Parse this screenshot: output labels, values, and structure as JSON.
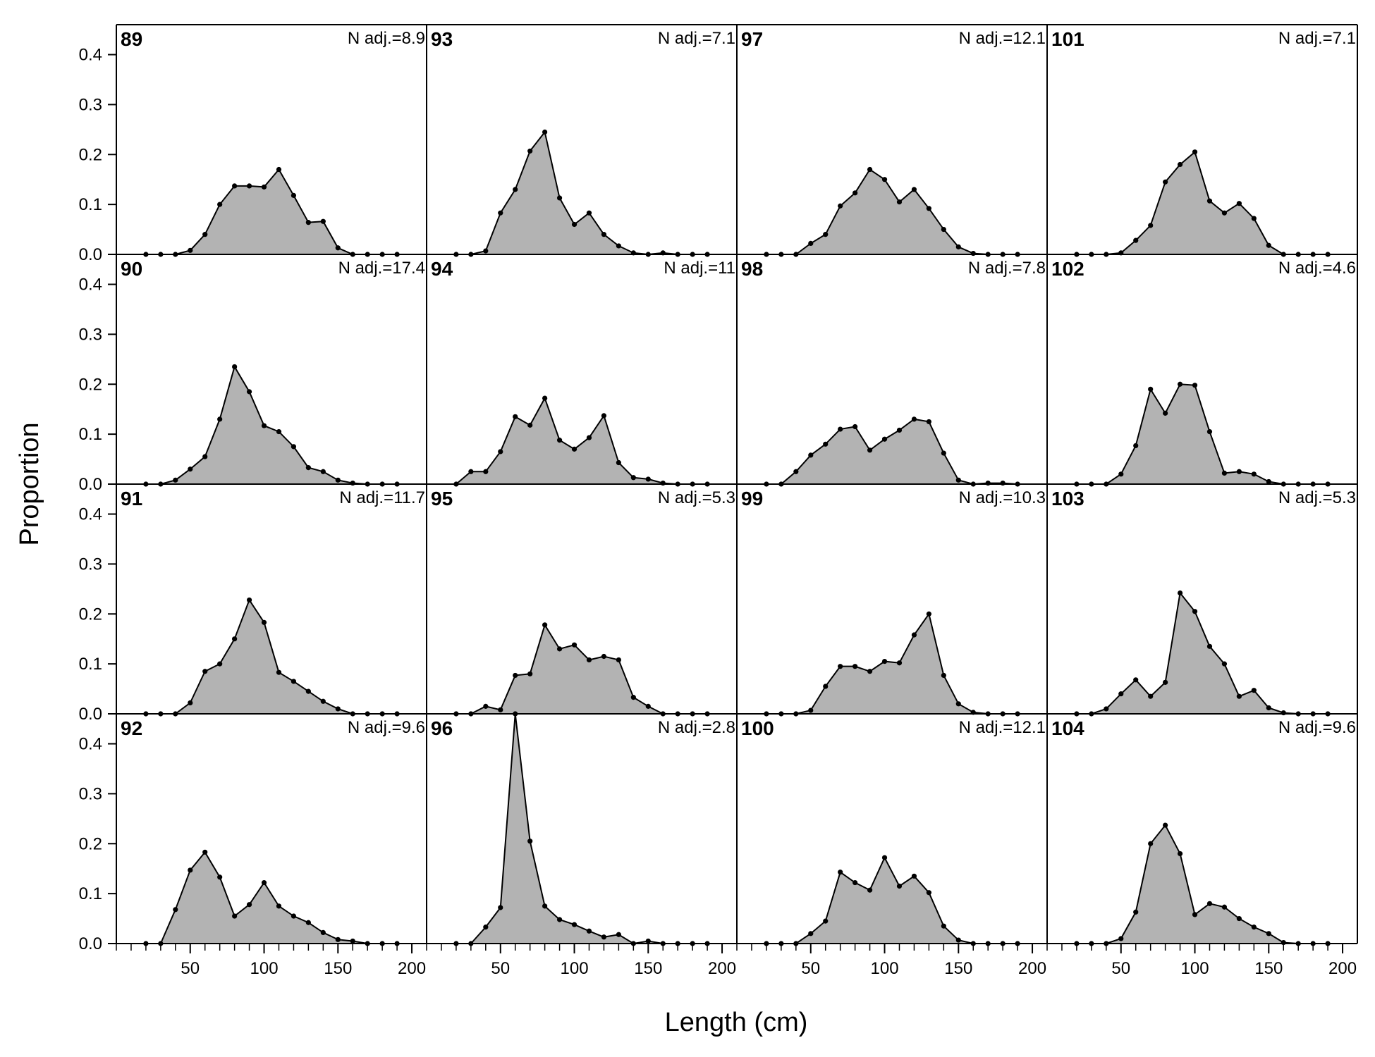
{
  "chart_data": {
    "type": "area",
    "xlabel": "Length (cm)",
    "ylabel": "Proportion",
    "xlim": [
      0,
      210
    ],
    "ylim": [
      0,
      0.46
    ],
    "x_ticks": [
      50,
      100,
      150,
      200
    ],
    "y_ticks": [
      "0.0",
      "0.1",
      "0.2",
      "0.3",
      "0.4"
    ],
    "grid": false,
    "layout": {
      "rows": 4,
      "cols": 4,
      "order": "column-major"
    },
    "x": [
      20,
      30,
      40,
      50,
      60,
      70,
      80,
      90,
      100,
      110,
      120,
      130,
      140,
      150,
      160,
      170,
      180,
      190
    ],
    "panels": [
      {
        "id": "89",
        "n_label": "N adj.=8.9",
        "values": [
          0,
          0,
          0,
          0.008,
          0.04,
          0.1,
          0.137,
          0.137,
          0.135,
          0.17,
          0.118,
          0.064,
          0.066,
          0.013,
          0,
          0,
          0,
          0
        ]
      },
      {
        "id": "90",
        "n_label": "N adj.=17.4",
        "values": [
          0,
          0,
          0.008,
          0.03,
          0.055,
          0.13,
          0.235,
          0.185,
          0.117,
          0.105,
          0.075,
          0.033,
          0.025,
          0.008,
          0.002,
          0,
          0,
          0
        ]
      },
      {
        "id": "91",
        "n_label": "N adj.=11.7",
        "values": [
          0,
          0,
          0,
          0.022,
          0.085,
          0.1,
          0.15,
          0.228,
          0.183,
          0.083,
          0.065,
          0.045,
          0.025,
          0.01,
          0,
          0,
          0,
          0
        ]
      },
      {
        "id": "92",
        "n_label": "N adj.=9.6",
        "values": [
          0,
          0,
          0.068,
          0.147,
          0.183,
          0.133,
          0.055,
          0.078,
          0.122,
          0.075,
          0.055,
          0.042,
          0.022,
          0.008,
          0.005,
          0,
          0,
          0
        ]
      },
      {
        "id": "93",
        "n_label": "N adj.=7.1",
        "values": [
          0,
          0,
          0.007,
          0.083,
          0.13,
          0.207,
          0.245,
          0.113,
          0.06,
          0.083,
          0.04,
          0.017,
          0.003,
          0,
          0.003,
          0,
          0,
          0
        ]
      },
      {
        "id": "94",
        "n_label": "N adj.=11",
        "values": [
          0,
          0.025,
          0.025,
          0.065,
          0.135,
          0.118,
          0.172,
          0.088,
          0.07,
          0.093,
          0.137,
          0.043,
          0.013,
          0.01,
          0.002,
          0,
          0,
          0
        ]
      },
      {
        "id": "95",
        "n_label": "N adj.=5.3",
        "values": [
          0,
          0,
          0.015,
          0.008,
          0.077,
          0.08,
          0.178,
          0.13,
          0.138,
          0.108,
          0.115,
          0.108,
          0.033,
          0.015,
          0,
          0,
          0,
          0
        ]
      },
      {
        "id": "96",
        "n_label": "N adj.=2.8",
        "values": [
          0,
          0,
          0.033,
          0.072,
          0.46,
          0.205,
          0.075,
          0.048,
          0.038,
          0.025,
          0.013,
          0.018,
          0,
          0.005,
          0,
          0,
          0,
          0
        ]
      },
      {
        "id": "97",
        "n_label": "N adj.=12.1",
        "values": [
          0,
          0,
          0,
          0.022,
          0.04,
          0.097,
          0.123,
          0.17,
          0.15,
          0.105,
          0.13,
          0.092,
          0.05,
          0.015,
          0.002,
          0,
          0,
          0
        ]
      },
      {
        "id": "98",
        "n_label": "N adj.=7.8",
        "values": [
          0,
          0,
          0.025,
          0.058,
          0.08,
          0.11,
          0.115,
          0.068,
          0.09,
          0.108,
          0.13,
          0.125,
          0.062,
          0.008,
          0,
          0.002,
          0.002,
          0
        ]
      },
      {
        "id": "99",
        "n_label": "N adj.=10.3",
        "values": [
          0,
          0,
          0,
          0.007,
          0.055,
          0.095,
          0.095,
          0.085,
          0.105,
          0.102,
          0.158,
          0.2,
          0.077,
          0.02,
          0.003,
          0,
          0,
          0
        ]
      },
      {
        "id": "100",
        "n_label": "N adj.=12.1",
        "values": [
          0,
          0,
          0,
          0.02,
          0.045,
          0.143,
          0.122,
          0.107,
          0.172,
          0.115,
          0.135,
          0.102,
          0.035,
          0.007,
          0,
          0,
          0,
          0
        ]
      },
      {
        "id": "101",
        "n_label": "N adj.=7.1",
        "values": [
          0,
          0,
          0,
          0.003,
          0.028,
          0.058,
          0.145,
          0.18,
          0.205,
          0.107,
          0.083,
          0.102,
          0.072,
          0.018,
          0,
          0,
          0,
          0
        ]
      },
      {
        "id": "102",
        "n_label": "N adj.=4.6",
        "values": [
          0,
          0,
          0,
          0.02,
          0.077,
          0.19,
          0.142,
          0.2,
          0.198,
          0.105,
          0.022,
          0.025,
          0.02,
          0.005,
          0,
          0,
          0,
          0
        ]
      },
      {
        "id": "103",
        "n_label": "N adj.=5.3",
        "values": [
          0,
          0,
          0.01,
          0.04,
          0.068,
          0.035,
          0.063,
          0.242,
          0.205,
          0.135,
          0.1,
          0.035,
          0.047,
          0.012,
          0.002,
          0,
          0,
          0
        ]
      },
      {
        "id": "104",
        "n_label": "N adj.=9.6",
        "values": [
          0,
          0,
          0,
          0.01,
          0.063,
          0.2,
          0.237,
          0.18,
          0.058,
          0.08,
          0.073,
          0.05,
          0.033,
          0.02,
          0.002,
          0,
          0,
          0
        ]
      }
    ]
  }
}
